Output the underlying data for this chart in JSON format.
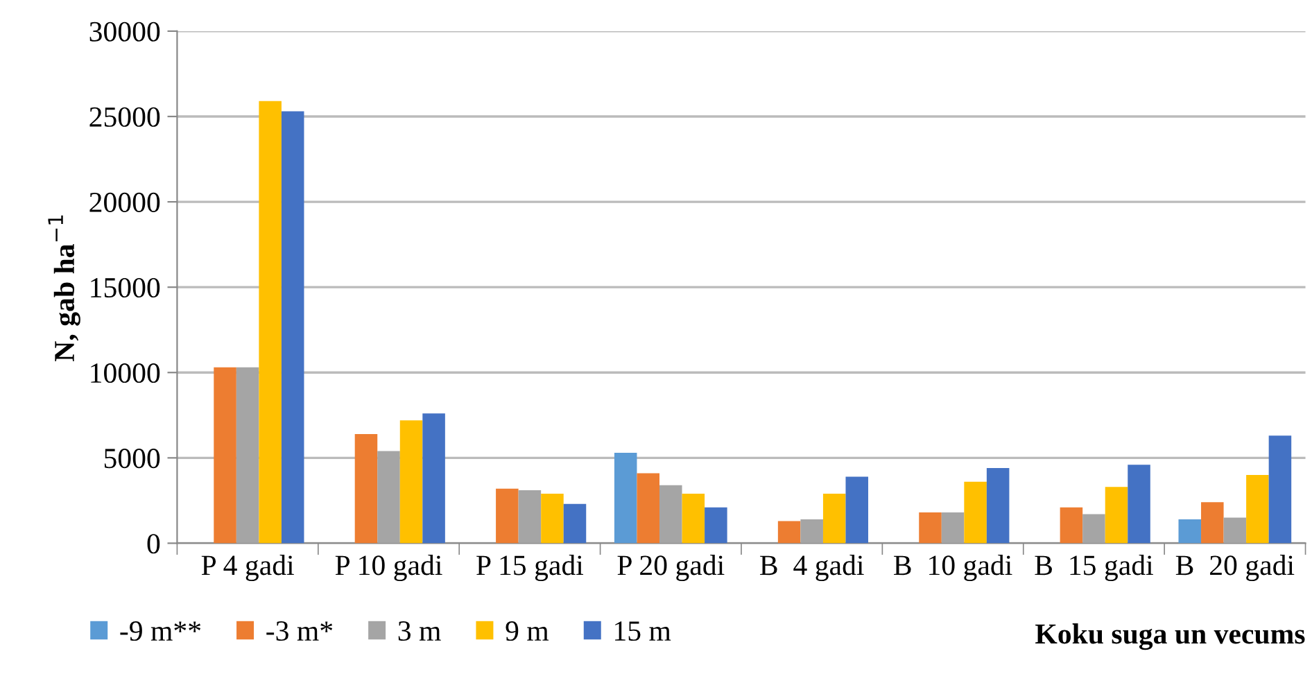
{
  "chart_data": {
    "type": "bar",
    "ylabel": "N, gab ha$^{−1}$",
    "xlabel": "Koku suga un vecums",
    "categories": [
      "P 4 gadi",
      "P 10 gadi",
      "P 15 gadi",
      "P 20 gadi",
      "B  4 gadi",
      "B  10 gadi",
      "B  15 gadi",
      "B  20 gadi"
    ],
    "series": [
      {
        "name": "-9 m**",
        "color": "#5b9bd5",
        "values": [
          null,
          null,
          null,
          5300,
          null,
          null,
          null,
          1400
        ]
      },
      {
        "name": "-3 m*",
        "color": "#ed7d31",
        "values": [
          10300,
          6400,
          3200,
          4100,
          1300,
          1800,
          2100,
          2400
        ]
      },
      {
        "name": "3 m",
        "color": "#a5a5a5",
        "values": [
          10300,
          5400,
          3100,
          3400,
          1400,
          1800,
          1700,
          1500
        ]
      },
      {
        "name": "9 m",
        "color": "#ffc000",
        "values": [
          25900,
          7200,
          2900,
          2900,
          2900,
          3600,
          3300,
          4000
        ]
      },
      {
        "name": "15 m",
        "color": "#4472c4",
        "values": [
          25300,
          7600,
          2300,
          2100,
          3900,
          4400,
          4600,
          6300
        ]
      }
    ],
    "ylim": [
      0,
      30000
    ],
    "yticks": [
      0,
      5000,
      10000,
      15000,
      20000,
      25000,
      30000
    ],
    "grid": "y",
    "legend": "bottom left"
  }
}
